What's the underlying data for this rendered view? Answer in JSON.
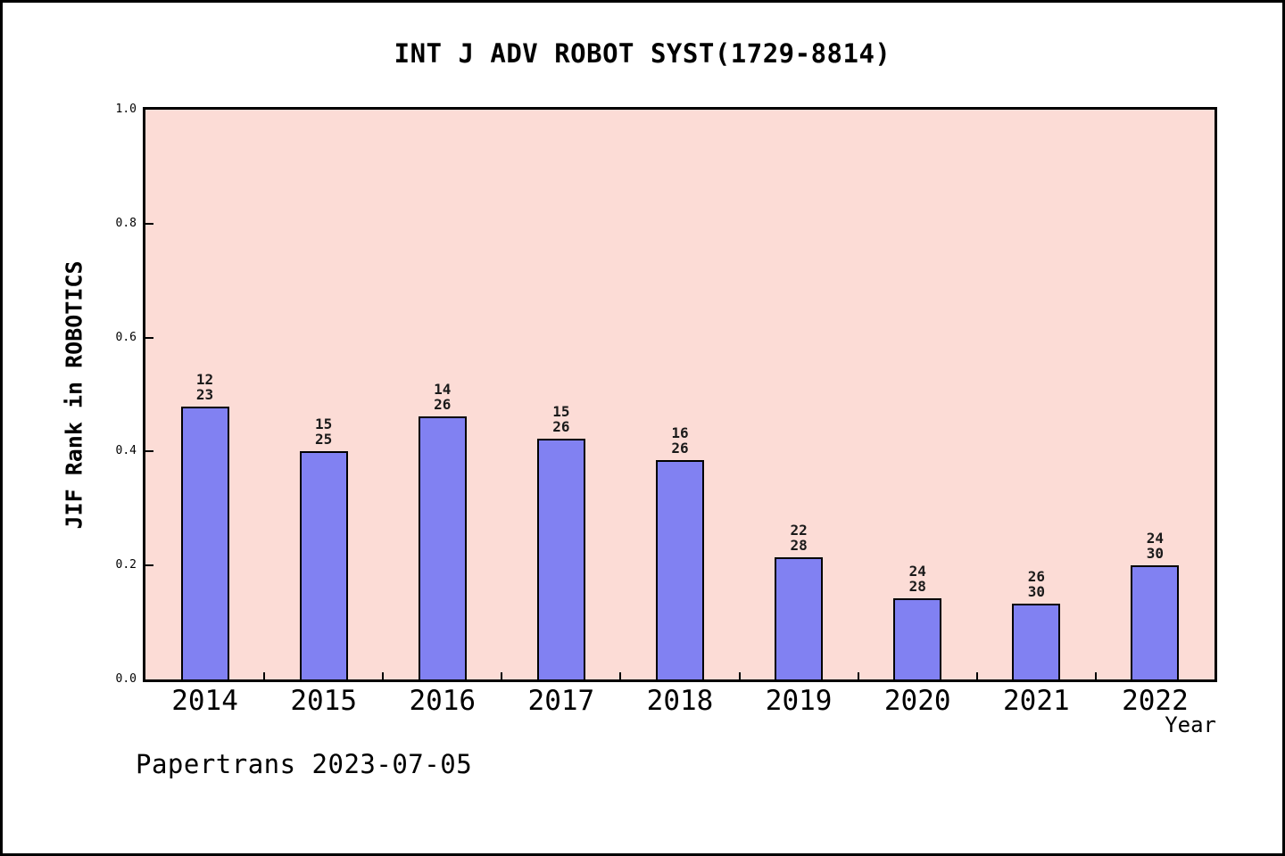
{
  "title": "INT J ADV ROBOT SYST(1729-8814)",
  "watermark": "Papertrans 2023-07-05",
  "chart_data": {
    "type": "bar",
    "title": "INT J ADV ROBOT SYST(1729-8814)",
    "xlabel": "Year",
    "ylabel": "JIF Rank in ROBOTICS",
    "ylim": [
      0,
      1
    ],
    "yticks": [
      "0.0",
      "0.2",
      "0.4",
      "0.6",
      "0.8",
      "1.0"
    ],
    "grid": false,
    "legend_position": "none",
    "plot_bg_color": "#fcdcd6",
    "bar_color": "#8181f2",
    "bar_edge_color": "#000000",
    "categories": [
      "2014",
      "2015",
      "2016",
      "2017",
      "2018",
      "2019",
      "2020",
      "2021",
      "2022"
    ],
    "bars": [
      {
        "year": "2014",
        "rank": "12",
        "total": "23",
        "value": 0.4783
      },
      {
        "year": "2015",
        "rank": "15",
        "total": "25",
        "value": 0.4
      },
      {
        "year": "2016",
        "rank": "14",
        "total": "26",
        "value": 0.4615
      },
      {
        "year": "2017",
        "rank": "15",
        "total": "26",
        "value": 0.4231
      },
      {
        "year": "2018",
        "rank": "16",
        "total": "26",
        "value": 0.3846
      },
      {
        "year": "2019",
        "rank": "22",
        "total": "28",
        "value": 0.2143
      },
      {
        "year": "2020",
        "rank": "24",
        "total": "28",
        "value": 0.1429
      },
      {
        "year": "2021",
        "rank": "26",
        "total": "30",
        "value": 0.1333
      },
      {
        "year": "2022",
        "rank": "24",
        "total": "30",
        "value": 0.2
      }
    ]
  }
}
